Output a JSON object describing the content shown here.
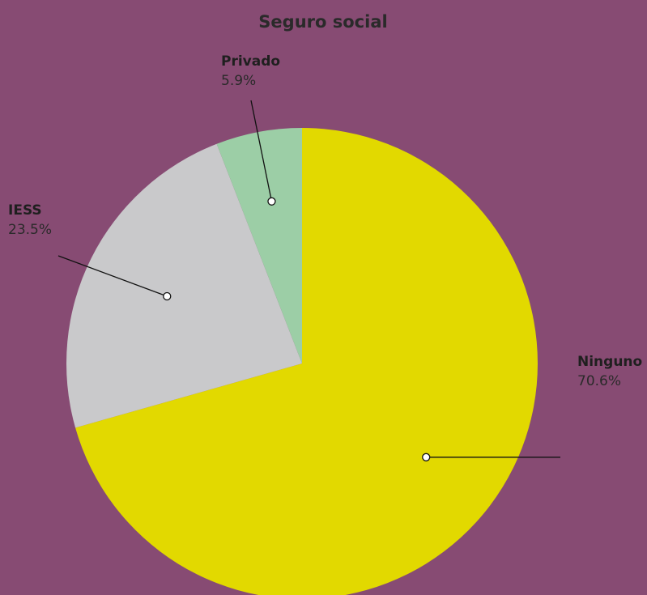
{
  "chart_data": {
    "type": "pie",
    "title": "Seguro social",
    "slices": [
      {
        "name": "Ninguno",
        "value": 70.6,
        "label": "70.6%",
        "color": "#e2d900"
      },
      {
        "name": "IESS",
        "value": 23.5,
        "label": "23.5%",
        "color": "#c9c9cb"
      },
      {
        "name": "Privado",
        "value": 5.9,
        "label": "5.9%",
        "color": "#9ccea6"
      }
    ],
    "start": "12 o'clock",
    "direction": "clockwise",
    "legend": "none"
  },
  "colors": {
    "background": "#874b73",
    "text": "#2a2a2a",
    "leader": "#111111"
  }
}
